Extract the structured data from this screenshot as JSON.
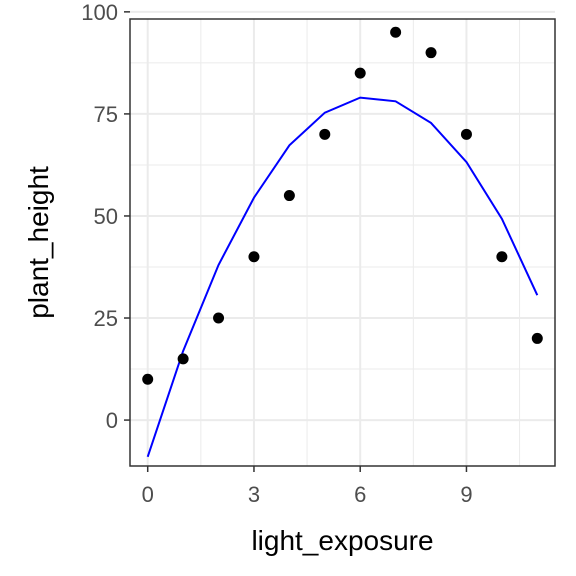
{
  "chart_data": {
    "type": "scatter",
    "xlabel": "light_exposure",
    "ylabel": "plant_height",
    "xlim": [
      -0.5,
      11.5
    ],
    "ylim": [
      -11.25,
      98.25
    ],
    "x_ticks": [
      0,
      3,
      6,
      9
    ],
    "x_tick_labels": [
      "0",
      "3",
      "6",
      "9"
    ],
    "y_ticks": [
      0,
      25,
      50,
      75,
      100
    ],
    "y_tick_labels": [
      "0",
      "25",
      "50",
      "75",
      "100"
    ],
    "grid": true,
    "legend": "none",
    "series": [
      {
        "type": "scatter",
        "color": "#000000",
        "x": [
          0,
          1,
          2,
          3,
          4,
          5,
          6,
          7,
          8,
          9,
          10,
          11
        ],
        "y": [
          10,
          15,
          25,
          40,
          55,
          70,
          85,
          95,
          90,
          70,
          40,
          20
        ]
      },
      {
        "type": "line",
        "color": "#0000ff",
        "x": [
          0,
          1,
          2,
          3,
          4,
          5,
          6,
          7,
          8,
          9,
          10,
          11
        ],
        "y": [
          -9.0,
          16.9,
          38.0,
          54.5,
          67.3,
          75.3,
          79.0,
          78.1,
          72.8,
          63.2,
          49.3,
          30.6
        ]
      }
    ]
  }
}
